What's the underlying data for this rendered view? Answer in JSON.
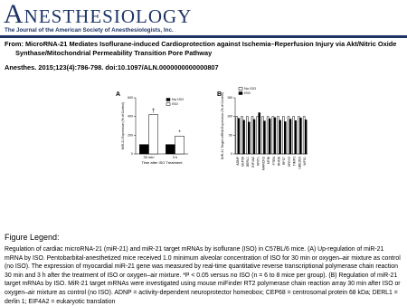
{
  "header": {
    "journal": "Anesthesiology",
    "subtitle": "The Journal of the American Society of Anesthesiologists, Inc."
  },
  "article": {
    "title": "From: MicroRNA-21 Mediates Isoflurane-induced Cardioprotection against Ischemia–Reperfusion Injury via Akt/Nitric Oxide Synthase/Mitochondrial Permeability Transition Pore Pathway",
    "citation": "Anesthes. 2015;123(4):786-798. doi:10.1097/ALN.0000000000000807"
  },
  "chart_data": [
    {
      "type": "bar",
      "panel": "A",
      "categories": [
        "30 min",
        "3 h"
      ],
      "series": [
        {
          "name": "No ISO",
          "color": "#000000",
          "values": [
            100,
            100
          ]
        },
        {
          "name": "ISO",
          "color": "#ffffff",
          "values": [
            420,
            190
          ]
        }
      ],
      "xlabel": "Time after ISO Treatment",
      "ylabel": "MiR-21 Expression (% of Control)",
      "ylim": [
        0,
        600
      ],
      "yticks": [
        0,
        200,
        400,
        600
      ],
      "legend": "upper right",
      "annotations": [
        "†",
        "*"
      ]
    },
    {
      "type": "bar",
      "panel": "B",
      "categories": [
        "ADNP",
        "CEP68",
        "DERL1",
        "EIF4A2",
        "KRIT1",
        "MARCKS",
        "NFIB",
        "PTEN",
        "RHOB",
        "RPS7",
        "SPRY2",
        "TIMP3",
        "UBE2D3",
        "WFS1"
      ],
      "series": [
        {
          "name": "No ISO",
          "color": "#ffffff",
          "values": [
            100,
            100,
            100,
            100,
            100,
            100,
            100,
            100,
            100,
            100,
            100,
            100,
            100,
            100
          ]
        },
        {
          "name": "ISO",
          "color": "#000000",
          "values": [
            95,
            90,
            85,
            92,
            110,
            88,
            94,
            97,
            90,
            86,
            93,
            89,
            96,
            91
          ]
        }
      ],
      "ylabel": "MiR-21 Target mRNA Expression (% of Control)",
      "ylim": [
        0,
        150
      ],
      "yticks": [
        0,
        50,
        100,
        150
      ],
      "legend": "upper left"
    }
  ],
  "legend": {
    "heading": "Figure Legend:",
    "text": "Regulation of cardiac microRNA-21 (miR-21) and miR-21 target mRNAs by isoflurane (ISO) in C57BL/6 mice. (A) Up-regulation of miR-21 mRNA by ISO. Pentobarbital-anesthetized mice received 1.0 minimum alveolar concentration of ISO for 30 min or oxygen–air mixture as control (no ISO). The expression of myocardial miR-21 gene was measured by real-time quantitative reverse transcriptional polymerase chain reaction 30 min and 3 h after the treatment of ISO or oxygen–air mixture. *P < 0.05 versus no ISO (n = 6 to 8 mice per group). (B) Regulation of miR-21 target mRNAs by ISO. MiR-21 target mRNAs were investigated using mouse miFinder RT2 polymerase chain reaction array 30 min after ISO or oxygen–air mixture as control (no ISO). ADNP = activity-dependent neuroprotector homeobox; CEP68 = centrosomal protein 68 kDa; DERL1 = derlin 1; EIF4A2 = eukaryotic translation"
  }
}
